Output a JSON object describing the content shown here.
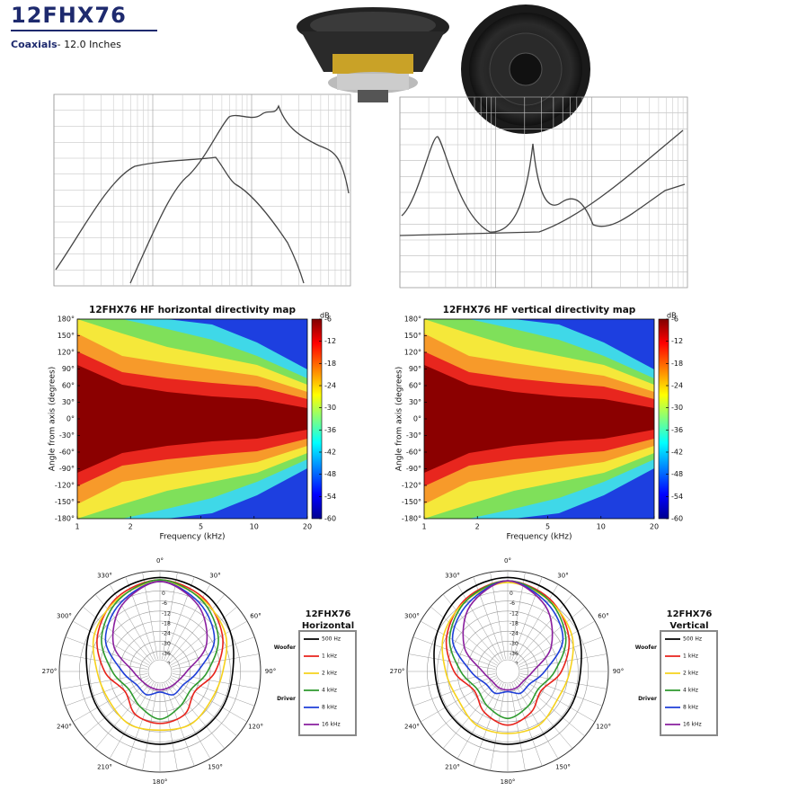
{
  "header": {
    "title": "12FHX76",
    "category": "Coaxials",
    "size": "- 12.0 Inches"
  },
  "directivity_maps": [
    {
      "title": "12FHX76 HF horizontal directivity map",
      "x_label": "Frequency (kHz)",
      "y_label": "Angle from axis (degrees)",
      "x_scale": "log",
      "xlim": [
        1,
        20
      ],
      "xticks": [
        1,
        2,
        5,
        10,
        20
      ],
      "ylim": [
        -180,
        180
      ],
      "yticks": [
        {
          "value": 180,
          "label": "180°"
        },
        {
          "value": 150,
          "label": "150°"
        },
        {
          "value": 120,
          "label": "120°"
        },
        {
          "value": 90,
          "label": "90°"
        },
        {
          "value": 60,
          "label": "60°"
        },
        {
          "value": 30,
          "label": "30°"
        },
        {
          "value": 0,
          "label": "0°"
        },
        {
          "value": -30,
          "label": "-30°"
        },
        {
          "value": -60,
          "label": "-60°"
        },
        {
          "value": -90,
          "label": "-90°"
        },
        {
          "value": -120,
          "label": "-120°"
        },
        {
          "value": -150,
          "label": "-150°"
        },
        {
          "value": -180,
          "label": "-180°"
        }
      ],
      "colorbar_label": "dB",
      "clim": [
        -60,
        -6
      ],
      "cticks": [
        -6,
        -12,
        -18,
        -24,
        -30,
        -36,
        -42,
        -48,
        -54,
        -60
      ]
    },
    {
      "title": "12FHX76 HF vertical directivity map",
      "x_label": "Frequency (kHz)",
      "y_label": "Angle from axis (degrees)",
      "x_scale": "log",
      "xlim": [
        1,
        20
      ],
      "xticks": [
        1,
        2,
        5,
        10,
        20
      ],
      "ylim": [
        -180,
        180
      ],
      "yticks": [
        {
          "value": 180,
          "label": "180°"
        },
        {
          "value": 150,
          "label": "150°"
        },
        {
          "value": 120,
          "label": "120°"
        },
        {
          "value": 90,
          "label": "90°"
        },
        {
          "value": 60,
          "label": "60°"
        },
        {
          "value": 30,
          "label": "30°"
        },
        {
          "value": 0,
          "label": "0°"
        },
        {
          "value": -30,
          "label": "-30°"
        },
        {
          "value": -60,
          "label": "-60°"
        },
        {
          "value": -90,
          "label": "-90°"
        },
        {
          "value": -120,
          "label": "-120°"
        },
        {
          "value": -150,
          "label": "-150°"
        },
        {
          "value": -180,
          "label": "-180°"
        }
      ],
      "colorbar_label": "dB",
      "clim": [
        -60,
        -6
      ],
      "cticks": [
        -6,
        -12,
        -18,
        -24,
        -30,
        -36,
        -42,
        -48,
        -54,
        -60
      ]
    }
  ],
  "polar_plots": [
    {
      "title": "12FHX76",
      "orientation": "Horizontal",
      "rlim": [
        -48,
        12
      ],
      "rticks": [
        0,
        -6,
        -12,
        -18,
        -24,
        -30,
        -36,
        -42
      ],
      "angle_ticks": [
        {
          "value": 0,
          "label": "0°"
        },
        {
          "value": 30,
          "label": "30°"
        },
        {
          "value": 60,
          "label": "60°"
        },
        {
          "value": 90,
          "label": "90°"
        },
        {
          "value": 120,
          "label": "120°"
        },
        {
          "value": 150,
          "label": "150°"
        },
        {
          "value": 180,
          "label": "180°"
        },
        {
          "value": 210,
          "label": "210°"
        },
        {
          "value": 240,
          "label": "240°"
        },
        {
          "value": 270,
          "label": "270°"
        },
        {
          "value": 300,
          "label": "300°"
        },
        {
          "value": 330,
          "label": "330°"
        }
      ],
      "groups": [
        {
          "name": "Woofer",
          "series": [
            {
              "name": "500 Hz",
              "color": "#000000",
              "values": [
                8,
                5.6,
                0.2,
                -4.6,
                -5,
                -5,
                -4.6,
                -5,
                -5,
                -4.6,
                0.2,
                5.6
              ]
            },
            {
              "name": "1 kHz",
              "color": "#e8231b",
              "values": [
                6.6,
                3,
                -5,
                -15,
                -24,
                -18.5,
                -17,
                -18.5,
                -24,
                -15,
                -5,
                3
              ]
            }
          ]
        },
        {
          "name": "Driver",
          "series": [
            {
              "name": "2 kHz",
              "color": "#f6d21c",
              "values": [
                5.6,
                2,
                -3,
                -10.5,
                -13,
                -11.6,
                -13,
                -11.6,
                -13,
                -10.5,
                -3,
                2
              ]
            },
            {
              "name": "4 kHz",
              "color": "#2e9a2e",
              "values": [
                6.6,
                1.3,
                -7.8,
                -19.6,
                -26.6,
                -24,
                -19.6,
                -24,
                -26.6,
                -19.6,
                -7.8,
                1.3
              ]
            },
            {
              "name": "8 kHz",
              "color": "#1f3fd8",
              "values": [
                5.6,
                -0.9,
                -10.5,
                -25.5,
                -32,
                -32,
                -35.7,
                -32,
                -32,
                -25.5,
                -10.5,
                -0.9
              ]
            },
            {
              "name": "16 kHz",
              "color": "#8a1f9e",
              "values": [
                5.6,
                -2.5,
                -16,
                -32,
                -36,
                -37,
                -37,
                -37,
                -36,
                -32,
                -16,
                -2.5
              ]
            }
          ]
        }
      ]
    },
    {
      "title": "12FHX76",
      "orientation": "Vertical",
      "rlim": [
        -48,
        12
      ],
      "rticks": [
        0,
        -6,
        -12,
        -18,
        -24,
        -30,
        -36,
        -42
      ],
      "angle_ticks": [
        {
          "value": 0,
          "label": "0°"
        },
        {
          "value": 30,
          "label": "30°"
        },
        {
          "value": 60,
          "label": "60°"
        },
        {
          "value": 90,
          "label": "90°"
        },
        {
          "value": 120,
          "label": "120°"
        },
        {
          "value": 150,
          "label": "150°"
        },
        {
          "value": 180,
          "label": "180°"
        },
        {
          "value": 210,
          "label": "210°"
        },
        {
          "value": 240,
          "label": "240°"
        },
        {
          "value": 270,
          "label": "270°"
        },
        {
          "value": 300,
          "label": "300°"
        },
        {
          "value": 330,
          "label": "330°"
        }
      ],
      "groups": [
        {
          "name": "Woofer",
          "series": [
            {
              "name": "500 Hz",
              "color": "#000000",
              "values": [
                8,
                5.6,
                0.2,
                -4.6,
                -5,
                -5,
                -4.6,
                -5,
                -5,
                -4.6,
                0.2,
                5.6
              ]
            },
            {
              "name": "1 kHz",
              "color": "#e8231b",
              "values": [
                6,
                2,
                -6,
                -16,
                -25,
                -20,
                -16,
                -20,
                -25,
                -16,
                -6,
                2
              ]
            }
          ]
        },
        {
          "name": "Driver",
          "series": [
            {
              "name": "2 kHz",
              "color": "#f6d21c",
              "values": [
                5,
                1,
                -4,
                -11,
                -14,
                -11,
                -11,
                -11,
                -14,
                -11,
                -4,
                1
              ]
            },
            {
              "name": "4 kHz",
              "color": "#2e9a2e",
              "values": [
                6,
                1,
                -8,
                -20,
                -27,
                -24,
                -20,
                -24,
                -27,
                -20,
                -8,
                1
              ]
            },
            {
              "name": "8 kHz",
              "color": "#1f3fd8",
              "values": [
                6,
                -1,
                -10,
                -26,
                -33,
                -33,
                -36,
                -33,
                -33,
                -26,
                -10,
                -1
              ]
            },
            {
              "name": "16 kHz",
              "color": "#8a1f9e",
              "values": [
                6,
                -3,
                -18,
                -33,
                -37,
                -37,
                -37,
                -37,
                -37,
                -33,
                -18,
                -3
              ]
            }
          ]
        }
      ]
    }
  ]
}
